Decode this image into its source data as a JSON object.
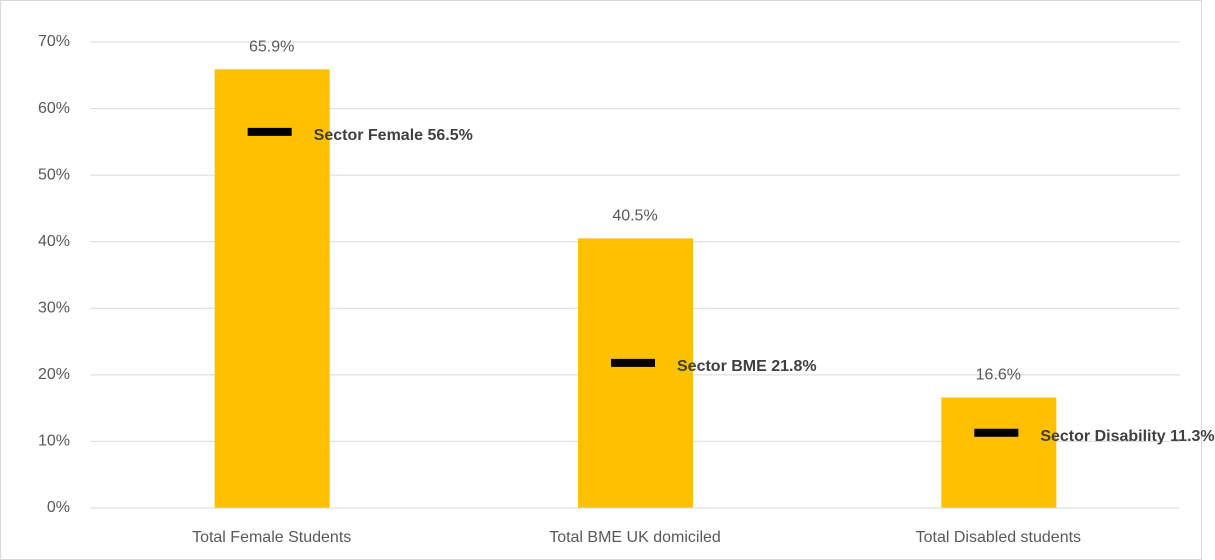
{
  "chart_data": {
    "type": "bar",
    "categories": [
      "Total Female Students",
      "Total BME UK domiciled",
      "Total Disabled students"
    ],
    "values": [
      65.9,
      40.5,
      16.6
    ],
    "value_labels": [
      "65.9%",
      "40.5%",
      "16.6%"
    ],
    "color": "#ffc000",
    "markers": {
      "values": [
        56.5,
        21.8,
        11.3
      ],
      "labels": [
        "Sector Female 56.5%",
        "Sector BME 21.8%",
        "Sector Disability 11.3%"
      ],
      "color": "#000000"
    },
    "ylim": [
      0,
      70
    ],
    "yticks": [
      {
        "value": 0,
        "label": "0%"
      },
      {
        "value": 10,
        "label": "10%"
      },
      {
        "value": 20,
        "label": "20%"
      },
      {
        "value": 30,
        "label": "30%"
      },
      {
        "value": 40,
        "label": "40%"
      },
      {
        "value": 50,
        "label": "50%"
      },
      {
        "value": 60,
        "label": "60%"
      },
      {
        "value": 70,
        "label": "70%"
      }
    ],
    "grid": true
  }
}
